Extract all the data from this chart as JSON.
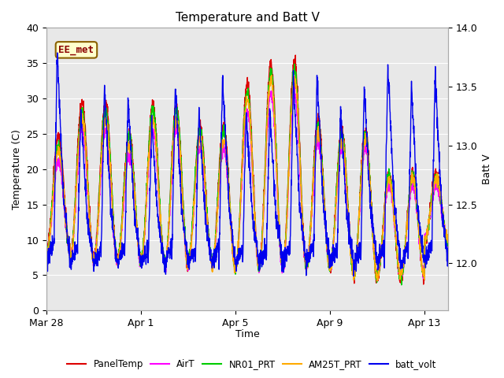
{
  "title": "Temperature and Batt V",
  "xlabel": "Time",
  "ylabel_left": "Temperature (C)",
  "ylabel_right": "Batt V",
  "ylim_left": [
    0,
    40
  ],
  "ylim_right": [
    11.6,
    14.0
  ],
  "annotation_text": "EE_met",
  "background_color": "#e8e8e8",
  "xtick_labels": [
    "Mar 28",
    "Apr 1",
    "Apr 5",
    "Apr 9",
    "Apr 13"
  ],
  "xtick_positions": [
    0,
    4,
    8,
    12,
    16
  ],
  "legend": [
    {
      "label": "PanelTemp",
      "color": "#dd0000",
      "lw": 1.2
    },
    {
      "label": "AirT",
      "color": "#ff00ff",
      "lw": 1.2
    },
    {
      "label": "NR01_PRT",
      "color": "#00cc00",
      "lw": 1.2
    },
    {
      "label": "AM25T_PRT",
      "color": "#ffaa00",
      "lw": 1.2
    },
    {
      "label": "batt_volt",
      "color": "#0000ee",
      "lw": 1.2
    }
  ],
  "n_days": 17,
  "temp_day_max": [
    24,
    29,
    29,
    25,
    29,
    29,
    26,
    26,
    32,
    35,
    35,
    27,
    26,
    26,
    20,
    20,
    20
  ],
  "temp_night_min": [
    8,
    7,
    7,
    7,
    7,
    6,
    7,
    6,
    6,
    6,
    6,
    6,
    6,
    5,
    5,
    5,
    10
  ],
  "batt_day_max": [
    13.8,
    13.3,
    13.5,
    13.4,
    13.2,
    13.5,
    13.3,
    13.6,
    13.3,
    13.3,
    13.6,
    13.6,
    13.3,
    13.5,
    13.7,
    13.5,
    13.6
  ],
  "batt_night_min": [
    12.0,
    12.0,
    12.0,
    12.0,
    12.0,
    12.0,
    12.0,
    12.0,
    12.0,
    12.0,
    12.0,
    12.0,
    12.0,
    12.0,
    12.0,
    12.0,
    12.0
  ],
  "figsize": [
    6.4,
    4.8
  ],
  "dpi": 100
}
